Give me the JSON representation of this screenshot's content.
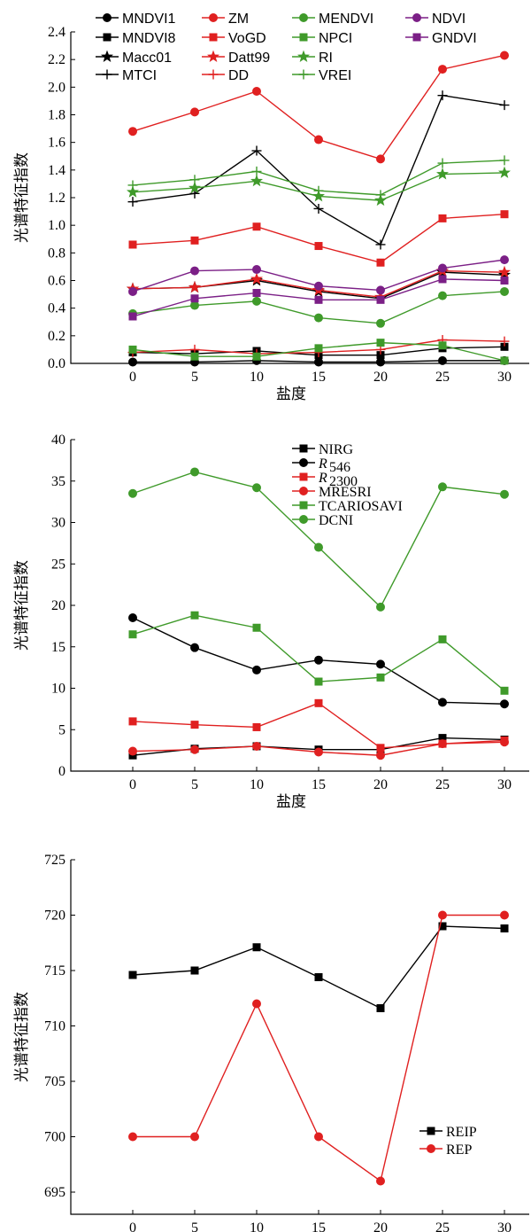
{
  "chart_data": [
    {
      "type": "line",
      "x": [
        0,
        5,
        10,
        15,
        20,
        25,
        30
      ],
      "xlabel": "盐度",
      "ylabel": "光谱特征指数",
      "xlim": [
        -5,
        32
      ],
      "ylim": [
        0,
        2.4
      ],
      "xticks": [
        "0",
        "5",
        "10",
        "15",
        "20",
        "25",
        "30"
      ],
      "yticks": [
        "0.0",
        "0.2",
        "0.4",
        "0.6",
        "0.8",
        "1.0",
        "1.2",
        "1.4",
        "1.6",
        "1.8",
        "2.0",
        "2.2",
        "2.4"
      ],
      "legend_position": "top",
      "series": [
        {
          "name": "MNDVI1",
          "color": "#000000",
          "marker": "circle",
          "values": [
            0.01,
            0.01,
            0.02,
            0.01,
            0.01,
            0.02,
            0.02
          ]
        },
        {
          "name": "MNDVI8",
          "color": "#000000",
          "marker": "square",
          "values": [
            0.08,
            0.07,
            0.09,
            0.06,
            0.06,
            0.11,
            0.12
          ]
        },
        {
          "name": "Macc01",
          "color": "#000000",
          "marker": "star",
          "values": [
            0.54,
            0.55,
            0.6,
            0.52,
            0.47,
            0.66,
            0.64
          ]
        },
        {
          "name": "MTCI",
          "color": "#000000",
          "marker": "plus",
          "values": [
            1.17,
            1.23,
            1.54,
            1.12,
            0.86,
            1.94,
            1.87
          ]
        },
        {
          "name": "ZM",
          "color": "#e02020",
          "marker": "circle",
          "values": [
            1.68,
            1.82,
            1.97,
            1.62,
            1.48,
            2.13,
            2.23
          ]
        },
        {
          "name": "VoGD",
          "color": "#e02020",
          "marker": "square",
          "values": [
            0.86,
            0.89,
            0.99,
            0.85,
            0.73,
            1.05,
            1.08
          ]
        },
        {
          "name": "Datt99",
          "color": "#e02020",
          "marker": "star",
          "values": [
            0.54,
            0.55,
            0.61,
            0.53,
            0.48,
            0.67,
            0.66
          ]
        },
        {
          "name": "DD",
          "color": "#e02020",
          "marker": "plus",
          "values": [
            0.08,
            0.1,
            0.07,
            0.08,
            0.1,
            0.17,
            0.16
          ]
        },
        {
          "name": "MENDVI",
          "color": "#3f9a2a",
          "marker": "circle",
          "values": [
            0.36,
            0.42,
            0.45,
            0.33,
            0.29,
            0.49,
            0.52
          ]
        },
        {
          "name": "NPCI",
          "color": "#3f9a2a",
          "marker": "square",
          "values": [
            0.1,
            0.05,
            0.05,
            0.11,
            0.15,
            0.13,
            0.02
          ]
        },
        {
          "name": "RI",
          "color": "#3f9a2a",
          "marker": "star",
          "values": [
            1.24,
            1.27,
            1.32,
            1.21,
            1.18,
            1.37,
            1.38
          ]
        },
        {
          "name": "VREI",
          "color": "#3f9a2a",
          "marker": "plus",
          "values": [
            1.29,
            1.33,
            1.39,
            1.25,
            1.22,
            1.45,
            1.47
          ]
        },
        {
          "name": "NDVI",
          "color": "#7b1f86",
          "marker": "circle",
          "values": [
            0.52,
            0.67,
            0.68,
            0.56,
            0.53,
            0.69,
            0.75
          ]
        },
        {
          "name": "GNDVI",
          "color": "#7b1f86",
          "marker": "square",
          "values": [
            0.34,
            0.47,
            0.51,
            0.46,
            0.46,
            0.61,
            0.6
          ]
        }
      ]
    },
    {
      "type": "line",
      "x": [
        0,
        5,
        10,
        15,
        20,
        25,
        30
      ],
      "xlabel": "盐度",
      "ylabel": "光谱特征指数",
      "xlim": [
        -5,
        32
      ],
      "ylim": [
        0,
        40
      ],
      "xticks": [
        "0",
        "5",
        "10",
        "15",
        "20",
        "25",
        "30"
      ],
      "yticks": [
        "0",
        "5",
        "10",
        "15",
        "20",
        "25",
        "30",
        "35",
        "40"
      ],
      "legend_position": "top-right",
      "series": [
        {
          "name": "NIRG",
          "color": "#000000",
          "marker": "square",
          "values": [
            1.9,
            2.7,
            3.0,
            2.6,
            2.6,
            4.0,
            3.8
          ]
        },
        {
          "name": "R546",
          "color": "#000000",
          "marker": "circle",
          "values": [
            18.5,
            14.9,
            12.2,
            13.4,
            12.9,
            8.3,
            8.1
          ]
        },
        {
          "name": "R2300",
          "color": "#e02020",
          "marker": "square",
          "values": [
            6.0,
            5.6,
            5.3,
            8.2,
            2.8,
            3.3,
            3.7
          ]
        },
        {
          "name": "MRESRI",
          "color": "#e02020",
          "marker": "circle",
          "values": [
            2.4,
            2.6,
            3.0,
            2.3,
            1.9,
            3.3,
            3.5
          ]
        },
        {
          "name": "TCARIOSAVI",
          "color": "#3f9a2a",
          "marker": "square",
          "values": [
            16.5,
            18.8,
            17.3,
            10.8,
            11.3,
            15.9,
            9.7
          ]
        },
        {
          "name": "DCNI",
          "color": "#3f9a2a",
          "marker": "circle",
          "values": [
            33.5,
            36.1,
            34.2,
            27.0,
            19.8,
            34.3,
            33.4
          ]
        }
      ]
    },
    {
      "type": "line",
      "x": [
        0,
        5,
        10,
        15,
        20,
        25,
        30
      ],
      "xlabel": "盐度",
      "ylabel": "光谱特征指数",
      "xlim": [
        -5,
        32
      ],
      "ylim": [
        693,
        725
      ],
      "xticks": [
        "0",
        "5",
        "10",
        "15",
        "20",
        "25",
        "30"
      ],
      "yticks": [
        "695",
        "700",
        "705",
        "710",
        "715",
        "720",
        "725"
      ],
      "legend_position": "bottom-right",
      "series": [
        {
          "name": "REIP",
          "color": "#000000",
          "marker": "square",
          "values": [
            714.6,
            715.0,
            717.1,
            714.4,
            711.6,
            719.0,
            718.8
          ]
        },
        {
          "name": "REP",
          "color": "#e02020",
          "marker": "circle",
          "values": [
            700,
            700,
            712,
            700,
            696,
            720,
            720
          ]
        }
      ]
    }
  ],
  "legend_labels": {
    "r546_main": "R",
    "r546_sub": "546",
    "r2300_main": "R",
    "r2300_sub": "2300"
  }
}
